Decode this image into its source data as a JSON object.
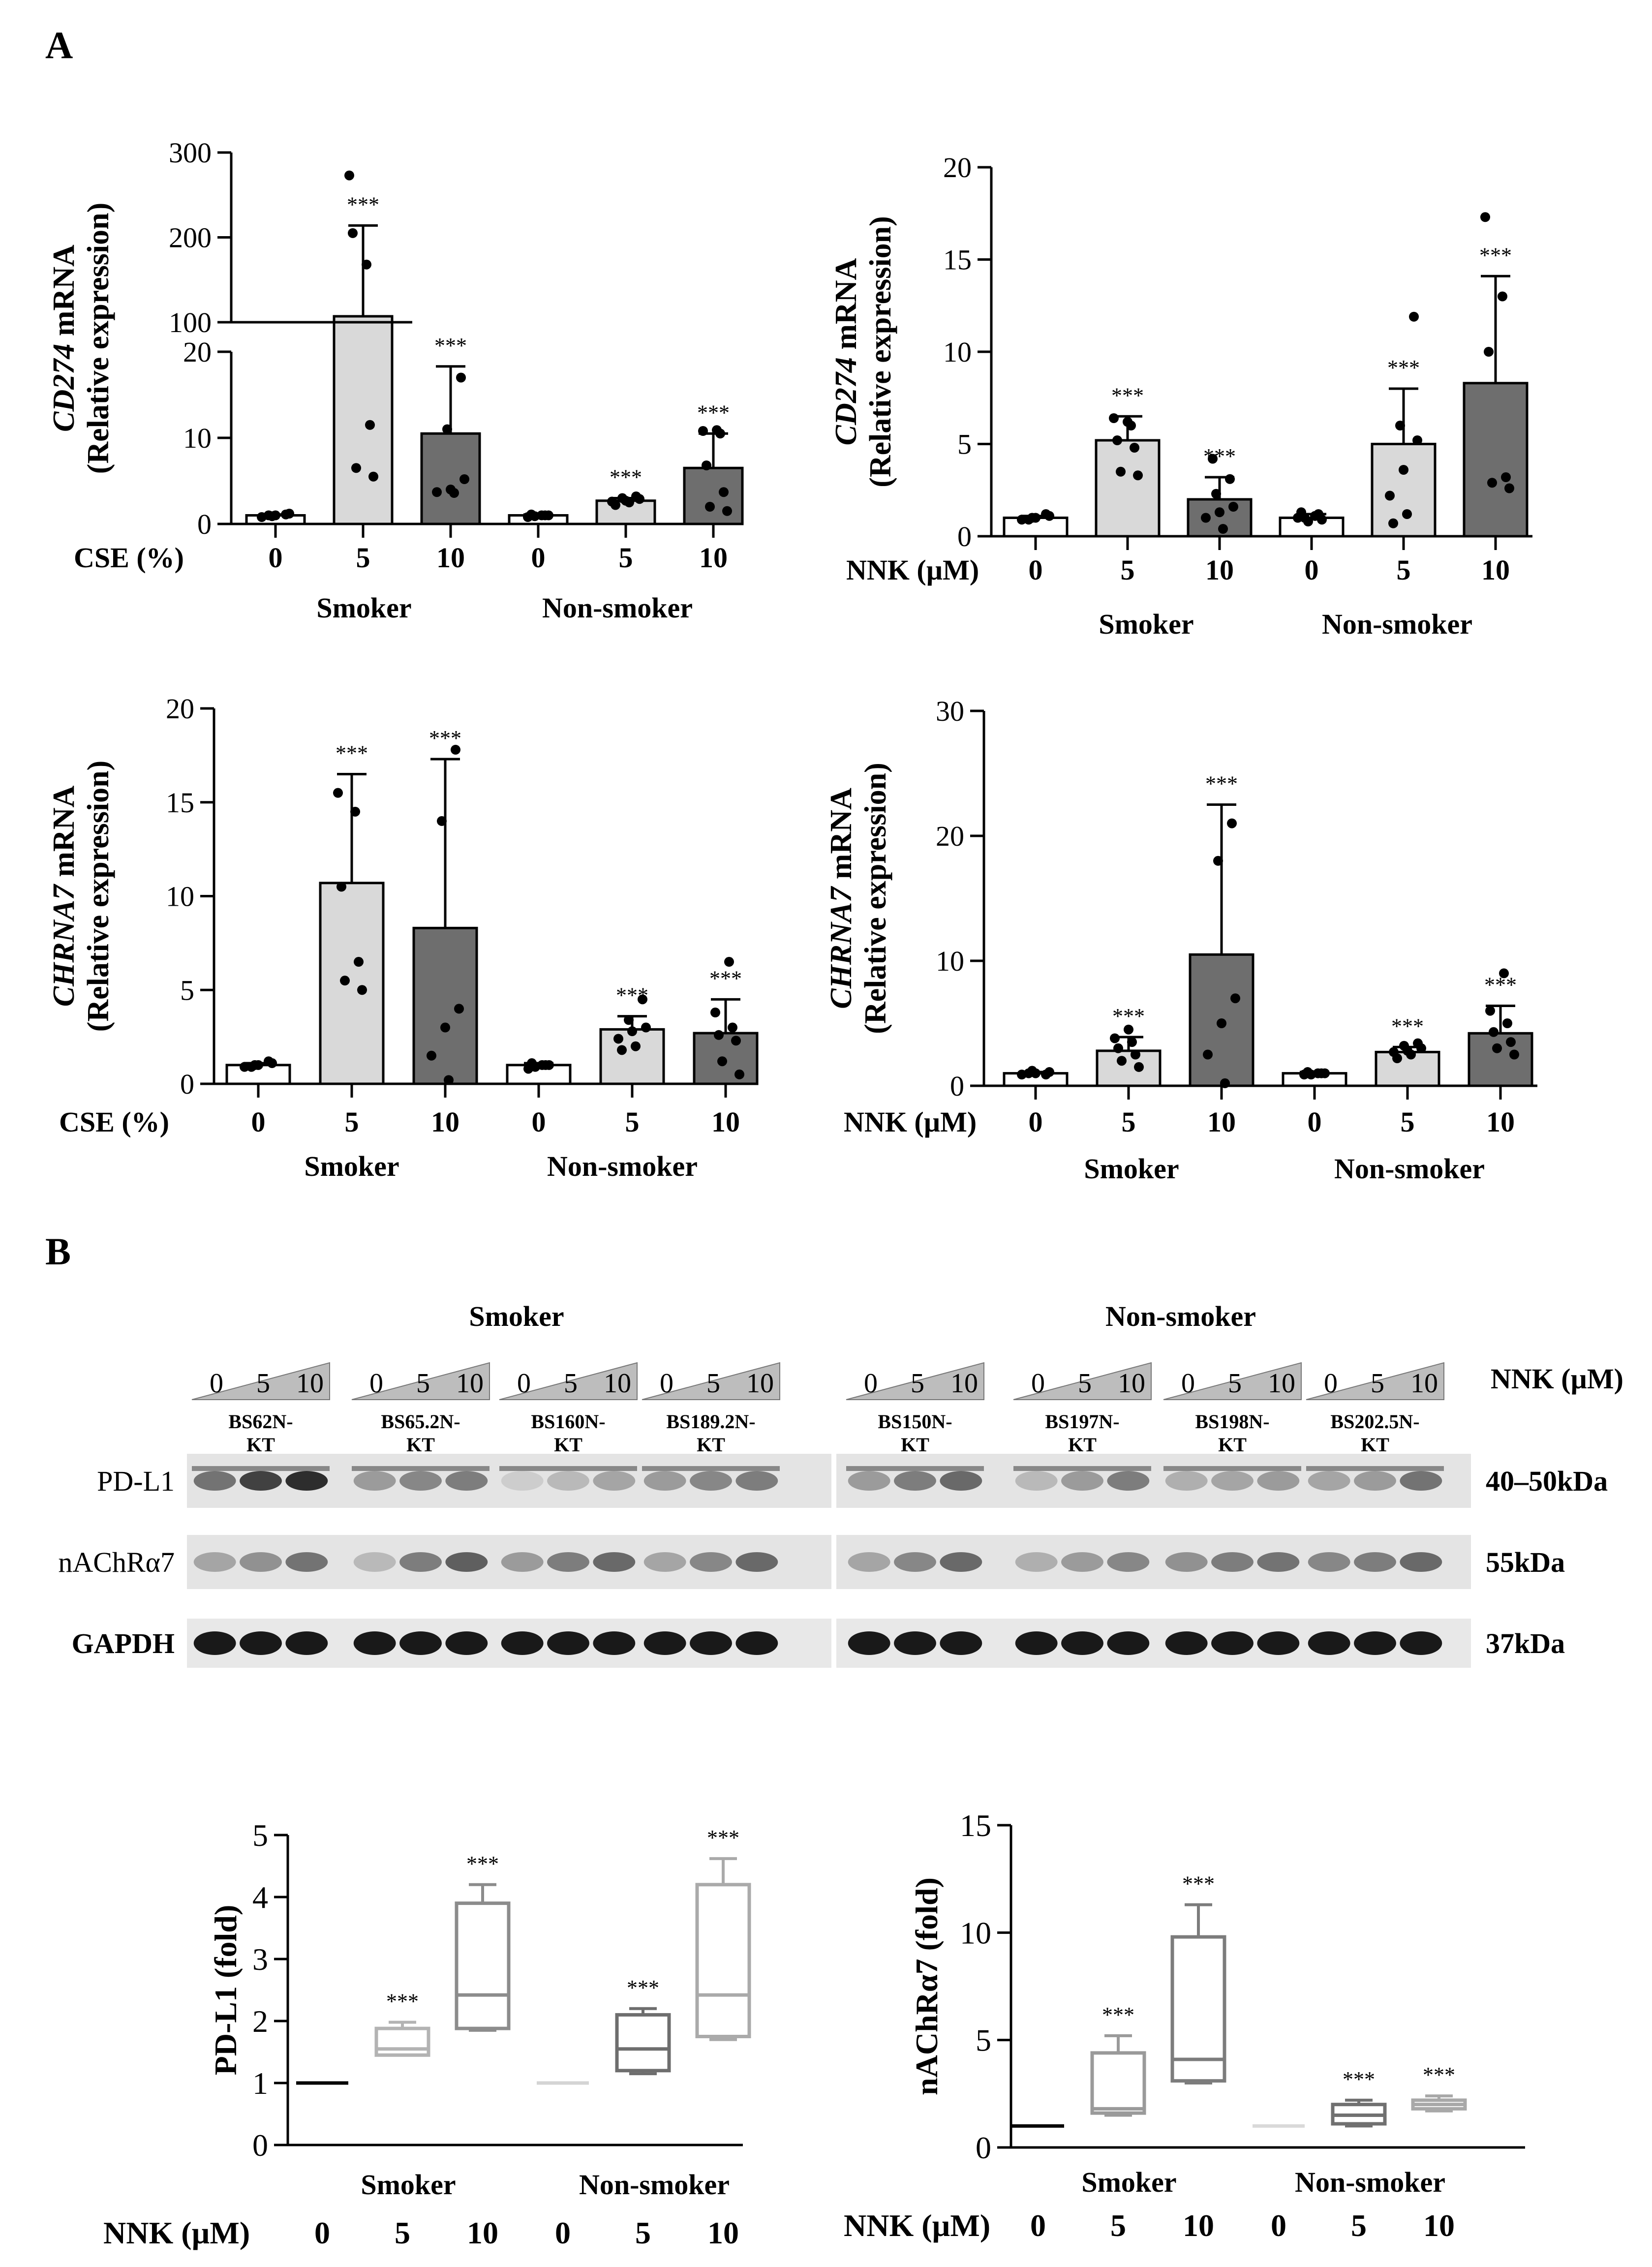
{
  "panels": {
    "a": "A",
    "b": "B"
  },
  "chart_data": [
    {
      "id": "cd274-cse",
      "type": "bar",
      "ylabel_gene": "CD274",
      "ylabel_suffix": " mRNA",
      "ylabel_line2": "(Relative expression)",
      "xlabel": "CSE (%)",
      "categories": [
        "0",
        "5",
        "10",
        "0",
        "5",
        "10"
      ],
      "groups": [
        "Smoker",
        "Non-smoker"
      ],
      "axis_break": true,
      "y_lower": {
        "ylim": [
          0,
          20
        ],
        "ticks": [
          0,
          10,
          20
        ]
      },
      "y_upper": {
        "ylim": [
          100,
          300
        ],
        "ticks": [
          100,
          200,
          300
        ]
      },
      "values": [
        1.0,
        107,
        10.5,
        1.0,
        2.7,
        6.5
      ],
      "errors": [
        0.1,
        107,
        7.8,
        0.1,
        0.3,
        4.0
      ],
      "significance": [
        "",
        "***",
        "***",
        "",
        "***",
        "***"
      ],
      "points": [
        [
          0.8,
          1.0,
          1.2,
          0.9,
          1.1,
          1.0
        ],
        [
          5.5,
          6.5,
          11.5,
          205,
          168,
          273
        ],
        [
          3.6,
          3.7,
          4.0,
          5.2,
          11.0,
          17.0
        ],
        [
          0.9,
          1.0,
          1.1,
          1.0,
          0.8,
          1.0
        ],
        [
          2.2,
          2.5,
          2.6,
          2.7,
          2.9,
          3.0,
          3.2
        ],
        [
          1.5,
          2.0,
          3.7,
          6.8,
          10.5,
          10.8,
          10.9
        ]
      ],
      "colors": [
        "#ffffff",
        "#d9d9d9",
        "#6e6e6e",
        "#ffffff",
        "#d9d9d9",
        "#6e6e6e"
      ]
    },
    {
      "id": "cd274-nnk",
      "type": "bar",
      "ylabel_gene": "CD274",
      "ylabel_suffix": " mRNA",
      "ylabel_line2": "(Relative expression)",
      "xlabel": "NNK (µM)",
      "categories": [
        "0",
        "5",
        "10",
        "0",
        "5",
        "10"
      ],
      "groups": [
        "Smoker",
        "Non-smoker"
      ],
      "ylim": [
        0,
        20
      ],
      "ticks": [
        0,
        5,
        10,
        15,
        20
      ],
      "values": [
        1.0,
        5.2,
        2.0,
        1.0,
        5.0,
        8.3
      ],
      "errors": [
        0.1,
        1.3,
        1.2,
        0.2,
        3.0,
        5.8
      ],
      "significance": [
        "",
        "***",
        "***",
        "",
        "***",
        "***"
      ],
      "points": [
        [
          0.9,
          1.0,
          1.1,
          1.0,
          1.2,
          0.9
        ],
        [
          3.3,
          3.5,
          4.8,
          5.2,
          6.0,
          6.4,
          6.2
        ],
        [
          0.4,
          1.0,
          1.3,
          1.6,
          2.3,
          3.1,
          4.2
        ],
        [
          0.8,
          0.9,
          1.0,
          1.2,
          1.3,
          1.1,
          1.0
        ],
        [
          0.7,
          1.2,
          2.2,
          3.6,
          5.2,
          6.0,
          11.9
        ],
        [
          2.6,
          2.9,
          3.2,
          10.0,
          13.0,
          17.3
        ]
      ],
      "colors": [
        "#ffffff",
        "#d9d9d9",
        "#6e6e6e",
        "#ffffff",
        "#d9d9d9",
        "#6e6e6e"
      ]
    },
    {
      "id": "chrna7-cse",
      "type": "bar",
      "ylabel_gene": "CHRNA7",
      "ylabel_suffix": " mRNA",
      "ylabel_line2": "(Relative expression)",
      "xlabel": "CSE (%)",
      "categories": [
        "0",
        "5",
        "10",
        "0",
        "5",
        "10"
      ],
      "groups": [
        "Smoker",
        "Non-smoker"
      ],
      "ylim": [
        0,
        20
      ],
      "ticks": [
        0,
        5,
        10,
        15,
        20
      ],
      "values": [
        1.0,
        10.7,
        8.3,
        1.0,
        2.9,
        2.7
      ],
      "errors": [
        0.1,
        5.8,
        9.0,
        0.1,
        0.7,
        1.8
      ],
      "significance": [
        "",
        "***",
        "***",
        "",
        "***",
        "***"
      ],
      "points": [
        [
          0.9,
          1.0,
          1.1,
          1.0,
          1.2,
          0.9
        ],
        [
          5.0,
          5.5,
          6.5,
          10.5,
          14.5,
          15.5
        ],
        [
          0.2,
          1.5,
          3.0,
          4.0,
          14.0,
          17.8
        ],
        [
          0.9,
          1.0,
          1.1,
          1.0,
          0.8,
          1.0
        ],
        [
          1.8,
          2.0,
          2.4,
          2.8,
          3.0,
          3.4,
          4.5
        ],
        [
          0.5,
          1.2,
          2.3,
          2.6,
          3.0,
          3.8,
          6.5
        ]
      ],
      "colors": [
        "#ffffff",
        "#d9d9d9",
        "#6e6e6e",
        "#ffffff",
        "#d9d9d9",
        "#6e6e6e"
      ]
    },
    {
      "id": "chrna7-nnk",
      "type": "bar",
      "ylabel_gene": "CHRNA7",
      "ylabel_suffix": " mRNA",
      "ylabel_line2": "(Relative expression)",
      "xlabel": "NNK (µM)",
      "categories": [
        "0",
        "5",
        "10",
        "0",
        "5",
        "10"
      ],
      "groups": [
        "Smoker",
        "Non-smoker"
      ],
      "ylim": [
        0,
        30
      ],
      "ticks": [
        0,
        10,
        20,
        30
      ],
      "values": [
        1.0,
        2.8,
        10.5,
        1.0,
        2.7,
        4.2
      ],
      "errors": [
        0.1,
        1.1,
        12.0,
        0.1,
        0.4,
        2.2
      ],
      "significance": [
        "",
        "***",
        "***",
        "",
        "***",
        "***"
      ],
      "points": [
        [
          0.9,
          1.0,
          1.1,
          1.2,
          0.9,
          1.0
        ],
        [
          1.5,
          2.0,
          2.5,
          3.0,
          3.5,
          3.8,
          4.5
        ],
        [
          0.2,
          2.5,
          5.0,
          7.0,
          18.0,
          21.0
        ],
        [
          0.9,
          1.0,
          1.1,
          1.0,
          0.9,
          1.0
        ],
        [
          2.2,
          2.5,
          2.7,
          2.8,
          3.0,
          3.2,
          3.4
        ],
        [
          2.5,
          3.0,
          3.5,
          4.3,
          5.0,
          6.0,
          9.0
        ]
      ],
      "colors": [
        "#ffffff",
        "#d9d9d9",
        "#6e6e6e",
        "#ffffff",
        "#d9d9d9",
        "#6e6e6e"
      ]
    },
    {
      "id": "pdl1-fold",
      "type": "box",
      "ylabel": "PD-L1 (fold)",
      "xlabel": "NNK (µM)",
      "categories": [
        "0",
        "5",
        "10",
        "0",
        "5",
        "10"
      ],
      "groups": [
        "Smoker",
        "Non-smoker"
      ],
      "ylim": [
        0,
        5
      ],
      "ticks": [
        0,
        1,
        2,
        3,
        4,
        5
      ],
      "boxes": [
        {
          "min": 1.0,
          "q1": 1.0,
          "median": 1.0,
          "q3": 1.0,
          "max": 1.0
        },
        {
          "min": 1.45,
          "q1": 1.45,
          "median": 1.55,
          "q3": 1.88,
          "max": 1.98
        },
        {
          "min": 1.85,
          "q1": 1.88,
          "median": 2.42,
          "q3": 3.9,
          "max": 4.2
        },
        {
          "min": 1.0,
          "q1": 1.0,
          "median": 1.0,
          "q3": 1.0,
          "max": 1.0
        },
        {
          "min": 1.15,
          "q1": 1.2,
          "median": 1.55,
          "q3": 2.1,
          "max": 2.2
        },
        {
          "min": 1.7,
          "q1": 1.75,
          "median": 2.42,
          "q3": 4.2,
          "max": 4.62
        }
      ],
      "significance": [
        "",
        "***",
        "***",
        "",
        "***",
        "***"
      ],
      "colors": [
        "#000000",
        "#b3b3b3",
        "#8c8c8c",
        "#d4d4d4",
        "#6e6e6e",
        "#aaaaaa"
      ]
    },
    {
      "id": "nachr-fold",
      "type": "box",
      "ylabel": "nAChRα7 (fold)",
      "xlabel": "NNK (µM)",
      "categories": [
        "0",
        "5",
        "10",
        "0",
        "5",
        "10"
      ],
      "groups": [
        "Smoker",
        "Non-smoker"
      ],
      "ylim": [
        0,
        15
      ],
      "ticks": [
        0,
        5,
        10,
        15
      ],
      "boxes": [
        {
          "min": 1.0,
          "q1": 1.0,
          "median": 1.0,
          "q3": 1.0,
          "max": 1.0
        },
        {
          "min": 1.5,
          "q1": 1.6,
          "median": 1.8,
          "q3": 4.4,
          "max": 5.2
        },
        {
          "min": 3.0,
          "q1": 3.1,
          "median": 4.1,
          "q3": 9.8,
          "max": 11.3
        },
        {
          "min": 1.0,
          "q1": 1.0,
          "median": 1.0,
          "q3": 1.0,
          "max": 1.0
        },
        {
          "min": 1.0,
          "q1": 1.1,
          "median": 1.5,
          "q3": 2.0,
          "max": 2.2
        },
        {
          "min": 1.7,
          "q1": 1.8,
          "median": 2.0,
          "q3": 2.2,
          "max": 2.4
        }
      ],
      "significance": [
        "",
        "***",
        "***",
        "",
        "***",
        "***"
      ],
      "colors": [
        "#000000",
        "#9a9a9a",
        "#7c7c7c",
        "#d9d9d9",
        "#707070",
        "#a8a8a8"
      ]
    }
  ],
  "blot": {
    "group_smoker": "Smoker",
    "group_nonsmoker": "Non-smoker",
    "dose_unit": "NNK (µM)",
    "doses": [
      "0",
      "5",
      "10"
    ],
    "samples_smoker": [
      [
        "BS62N-",
        "KT"
      ],
      [
        "BS65.2N-",
        "KT"
      ],
      [
        "BS160N-",
        "KT"
      ],
      [
        "BS189.2N-",
        "KT"
      ]
    ],
    "samples_nonsmoker": [
      [
        "BS150N-",
        "KT"
      ],
      [
        "BS197N-",
        "KT"
      ],
      [
        "BS198N-",
        "KT"
      ],
      [
        "BS202.5N-",
        "KT"
      ]
    ],
    "rows": [
      {
        "label": "PD-L1",
        "size": "40–50kDa"
      },
      {
        "label": "nAChRα7",
        "size": "55kDa"
      },
      {
        "label": "GAPDH",
        "size": "37kDa"
      }
    ],
    "band_intensity": [
      [
        0.55,
        0.8,
        0.9,
        0.35,
        0.45,
        0.5,
        0.1,
        0.2,
        0.3,
        0.35,
        0.45,
        0.5,
        0.35,
        0.5,
        0.6,
        0.2,
        0.35,
        0.5,
        0.25,
        0.3,
        0.35,
        0.3,
        0.35,
        0.55
      ],
      [
        0.3,
        0.4,
        0.55,
        0.2,
        0.5,
        0.65,
        0.35,
        0.5,
        0.6,
        0.3,
        0.45,
        0.6,
        0.3,
        0.45,
        0.6,
        0.25,
        0.35,
        0.45,
        0.4,
        0.5,
        0.55,
        0.45,
        0.5,
        0.6
      ],
      [
        1,
        1,
        1,
        1,
        1,
        1,
        1,
        1,
        1,
        1,
        1,
        1,
        1,
        1,
        1,
        1,
        1,
        1,
        1,
        1,
        1,
        1,
        1,
        1
      ]
    ]
  }
}
